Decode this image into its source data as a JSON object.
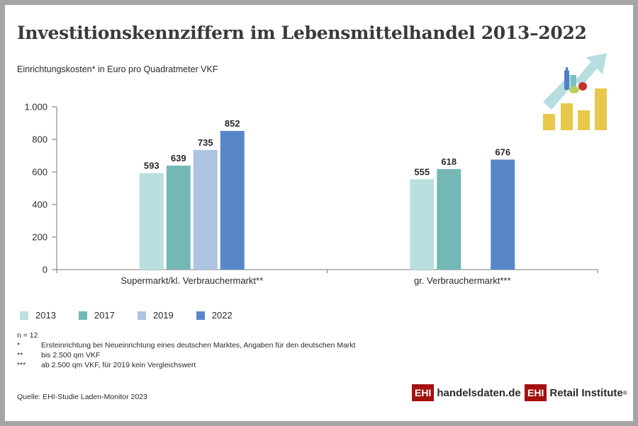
{
  "title": "Investitionskennziffern im Lebensmittelhandel 2013–2022",
  "subtitle": "Einrichtungskosten* in Euro pro Quadratmeter VKF",
  "chart_data": {
    "type": "bar",
    "title": "Investitionskennziffern im Lebensmittelhandel 2013–2022",
    "ylabel": "Einrichtungskosten in Euro pro Quadratmeter VKF",
    "xlabel": "",
    "categories": [
      "Supermarkt/kl. Verbrauchermarkt**",
      "gr. Verbrauchermarkt***"
    ],
    "series": [
      {
        "name": "2013",
        "color": "#badfdf",
        "values": [
          593,
          555
        ]
      },
      {
        "name": "2017",
        "color": "#74b8b6",
        "values": [
          639,
          618
        ]
      },
      {
        "name": "2019",
        "color": "#adc3e2",
        "values": [
          735,
          null
        ]
      },
      {
        "name": "2022",
        "color": "#5887c9",
        "values": [
          852,
          676
        ]
      }
    ],
    "ylim": [
      0,
      1000
    ],
    "yticks": [
      0,
      200,
      400,
      600,
      800,
      1000
    ],
    "ytick_labels": [
      "0",
      "200",
      "400",
      "600",
      "800",
      "1.000"
    ],
    "grid": false,
    "legend": "bottom-left",
    "data_labels": true
  },
  "legend": [
    {
      "label": "2013",
      "color": "#badfdf"
    },
    {
      "label": "2017",
      "color": "#74b8b6"
    },
    {
      "label": "2019",
      "color": "#adc3e2"
    },
    {
      "label": "2022",
      "color": "#5887c9"
    }
  ],
  "notes": {
    "n": "n = 12",
    "items": [
      {
        "mark": "*",
        "text": "Ersteinrichtung bei Neueinrichtung eines deutschen Marktes, Angaben für den deutschen Markt"
      },
      {
        "mark": "**",
        "text": "bis 2.500 qm VKF"
      },
      {
        "mark": "***",
        "text": "ab 2.500 qm VKF, für 2019 kein Vergleichswert"
      }
    ]
  },
  "source": "Quelle: EHI-Studie Laden-Monitor 2023",
  "logos": {
    "ehi": "EHI",
    "handelsdaten": "handelsdaten.de",
    "retail": "Retail Institute",
    "reg": "®"
  }
}
